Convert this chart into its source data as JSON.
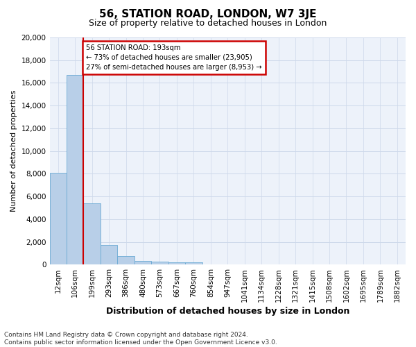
{
  "title": "56, STATION ROAD, LONDON, W7 3JE",
  "subtitle": "Size of property relative to detached houses in London",
  "xlabel": "Distribution of detached houses by size in London",
  "ylabel": "Number of detached properties",
  "footer_line1": "Contains HM Land Registry data © Crown copyright and database right 2024.",
  "footer_line2": "Contains public sector information licensed under the Open Government Licence v3.0.",
  "bin_labels": [
    "12sqm",
    "106sqm",
    "199sqm",
    "293sqm",
    "386sqm",
    "480sqm",
    "573sqm",
    "667sqm",
    "760sqm",
    "854sqm",
    "947sqm",
    "1041sqm",
    "1134sqm",
    "1228sqm",
    "1321sqm",
    "1415sqm",
    "1508sqm",
    "1602sqm",
    "1695sqm",
    "1789sqm",
    "1882sqm"
  ],
  "bar_values": [
    8100,
    16700,
    5400,
    1750,
    750,
    350,
    280,
    220,
    220,
    0,
    0,
    0,
    0,
    0,
    0,
    0,
    0,
    0,
    0,
    0,
    0
  ],
  "bar_color": "#b8cfe8",
  "bar_edge_color": "#6aaad4",
  "grid_color": "#cdd8ea",
  "background_color": "#edf2fa",
  "property_line_color": "#cc0000",
  "annotation_line1": "56 STATION ROAD: 193sqm",
  "annotation_line2": "← 73% of detached houses are smaller (23,905)",
  "annotation_line3": "27% of semi-detached houses are larger (8,953) →",
  "annotation_box_color": "#cc0000",
  "ylim": [
    0,
    20000
  ],
  "yticks": [
    0,
    2000,
    4000,
    6000,
    8000,
    10000,
    12000,
    14000,
    16000,
    18000,
    20000
  ],
  "title_fontsize": 11,
  "subtitle_fontsize": 9,
  "xlabel_fontsize": 9,
  "ylabel_fontsize": 8,
  "tick_fontsize": 7.5,
  "footer_fontsize": 6.5
}
